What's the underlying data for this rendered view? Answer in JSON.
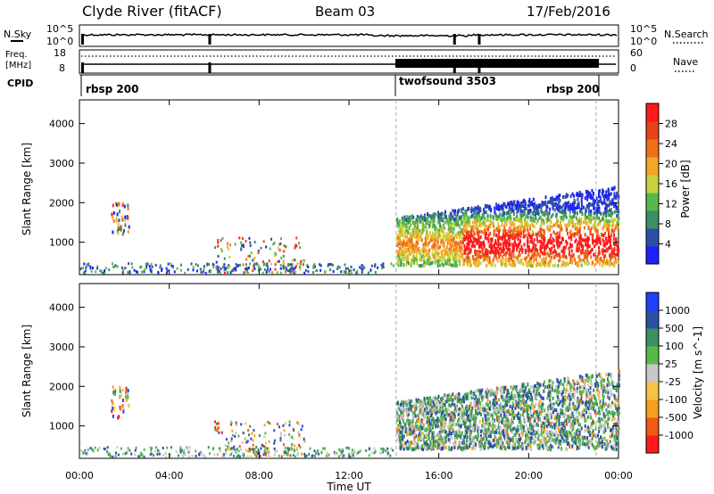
{
  "header": {
    "title": "Clyde River (fitACF)",
    "beam": "Beam 03",
    "date": "17/Feb/2016"
  },
  "noise_panel": {
    "left_label": "N.Sky",
    "left_ticks": [
      "10^5",
      "10^0"
    ],
    "right_ticks": [
      "10^5",
      "10^0"
    ],
    "right_label": "N.Search"
  },
  "freq_panel": {
    "left_label_1": "Freq.",
    "left_label_2": "[MHz]",
    "left_ticks": [
      "18",
      "8"
    ],
    "right_ticks": [
      "60",
      "0"
    ],
    "right_label": "Nave"
  },
  "cpid_panel": {
    "label": "CPID",
    "segments": [
      "rbsp 200",
      "twofsound 3503",
      "rbsp 200"
    ]
  },
  "x_axis": {
    "ticks": [
      "00:00",
      "04:00",
      "08:00",
      "12:00",
      "16:00",
      "20:00",
      "00:00"
    ],
    "label": "Time UT"
  },
  "colors": {
    "power_scale": [
      "#1f1fff",
      "#2c4fa6",
      "#3b8f63",
      "#59b84a",
      "#c8d23a",
      "#f5a623",
      "#f07018",
      "#e8421b",
      "#ff1a1a"
    ],
    "velocity_scale": [
      "#ff1a1a",
      "#f05a12",
      "#f5a01c",
      "#f5c542",
      "#c8c8c8",
      "#59b84a",
      "#3b8f63",
      "#2c4fa6",
      "#1f3fff"
    ]
  },
  "chart_data": [
    {
      "type": "heatmap",
      "title": "Power",
      "xlabel": "",
      "ylabel": "Slant Range [km]",
      "y_ticks": [
        "1000",
        "2000",
        "3000",
        "4000"
      ],
      "xlim_hours": [
        0,
        24
      ],
      "ylim_km": [
        180,
        4600
      ],
      "colorbar_label": "Power [dB]",
      "colorbar_ticks": [
        "4",
        "8",
        "12",
        "16",
        "20",
        "24",
        "28"
      ],
      "colorbar_range": [
        0,
        30
      ]
    },
    {
      "type": "heatmap",
      "title": "Velocity",
      "xlabel": "Time UT",
      "ylabel": "Slant Range [km]",
      "y_ticks": [
        "1000",
        "2000",
        "3000",
        "4000"
      ],
      "xlim_hours": [
        0,
        24
      ],
      "ylim_km": [
        180,
        4600
      ],
      "colorbar_label": "Velocity [m s^-1]",
      "colorbar_ticks": [
        "1000",
        "500",
        "100",
        "25",
        "-25",
        "-100",
        "-500",
        "-1000"
      ]
    }
  ]
}
